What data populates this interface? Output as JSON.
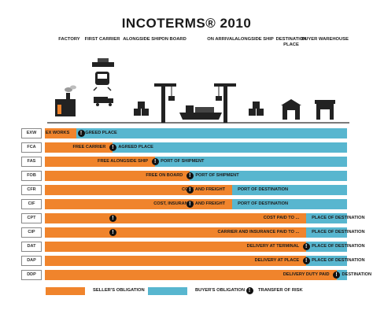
{
  "title": "INCOTERMS® 2010",
  "columns": [
    {
      "label": "FACTORY"
    },
    {
      "label": "FIRST CARRIER"
    },
    {
      "label": "ALONGSIDE SHIP"
    },
    {
      "label": "ON BOARD"
    },
    {
      "label": "ON ARRIVAL"
    },
    {
      "label": "ALONGSIDE SHIP"
    },
    {
      "label": "DESTINATION PLACE"
    },
    {
      "label": "BUYER WAREHOUSE"
    }
  ],
  "colors": {
    "seller": "#f0842c",
    "buyer": "#58b6cf",
    "risk": "#111111"
  },
  "rows": [
    {
      "code": "EXW",
      "split": 0.105,
      "risk": 0.12,
      "seller_text": "EX WORKS",
      "buyer_text": "AGREED PLACE"
    },
    {
      "code": "FCA",
      "split": 0.225,
      "risk": 0.225,
      "seller_text": "FREE CARRIER",
      "buyer_text": "AGREED PLACE"
    },
    {
      "code": "FAS",
      "split": 0.365,
      "risk": 0.365,
      "seller_text": "FREE ALONGSIDE SHIP",
      "buyer_text": "PORT OF SHIPMENT"
    },
    {
      "code": "FOB",
      "split": 0.48,
      "risk": 0.48,
      "seller_text": "FREE ON BOARD",
      "buyer_text": "PORT OF SHIPMENT"
    },
    {
      "code": "CFR",
      "split": 0.62,
      "risk": 0.48,
      "seller_text": "COST AND FREIGHT",
      "buyer_text": "PORT OF DESTINATION"
    },
    {
      "code": "CIF",
      "split": 0.62,
      "risk": 0.48,
      "seller_text": "COST, INSURANCE AND FREIGHT",
      "buyer_text": "PORT OF DESTINATION"
    },
    {
      "code": "CPT",
      "split": 0.865,
      "risk": 0.225,
      "seller_text": "COST PAID TO ...",
      "buyer_text": "PLACE OF DESTINATION"
    },
    {
      "code": "CIP",
      "split": 0.865,
      "risk": 0.225,
      "seller_text": "CARRIER AND INSURANCE PAID TO ...",
      "buyer_text": "PLACE OF DESTINATION"
    },
    {
      "code": "DAT",
      "split": 0.865,
      "risk": 0.865,
      "seller_text": "DELIVERY AT TERMINAL",
      "buyer_text": "PLACE OF DESTINATION"
    },
    {
      "code": "DAP",
      "split": 0.865,
      "risk": 0.865,
      "seller_text": "DELIVERY AT PLACE",
      "buyer_text": "PLACE OF DESTINATION"
    },
    {
      "code": "DDP",
      "split": 0.965,
      "risk": 0.965,
      "seller_text": "DELIVERY DUTY PAID",
      "buyer_text": "DESTINATION"
    }
  ],
  "legend": {
    "seller": "SELLER'S OBLIGATION",
    "buyer": "BUYER'S OBLIGATION",
    "risk": "TRANSFER OF RISK"
  },
  "icons": [
    "factory-icon",
    "train-icon",
    "truck-icon",
    "ship-icon",
    "crate-icon",
    "crane-icon",
    "warehouse-icon"
  ]
}
